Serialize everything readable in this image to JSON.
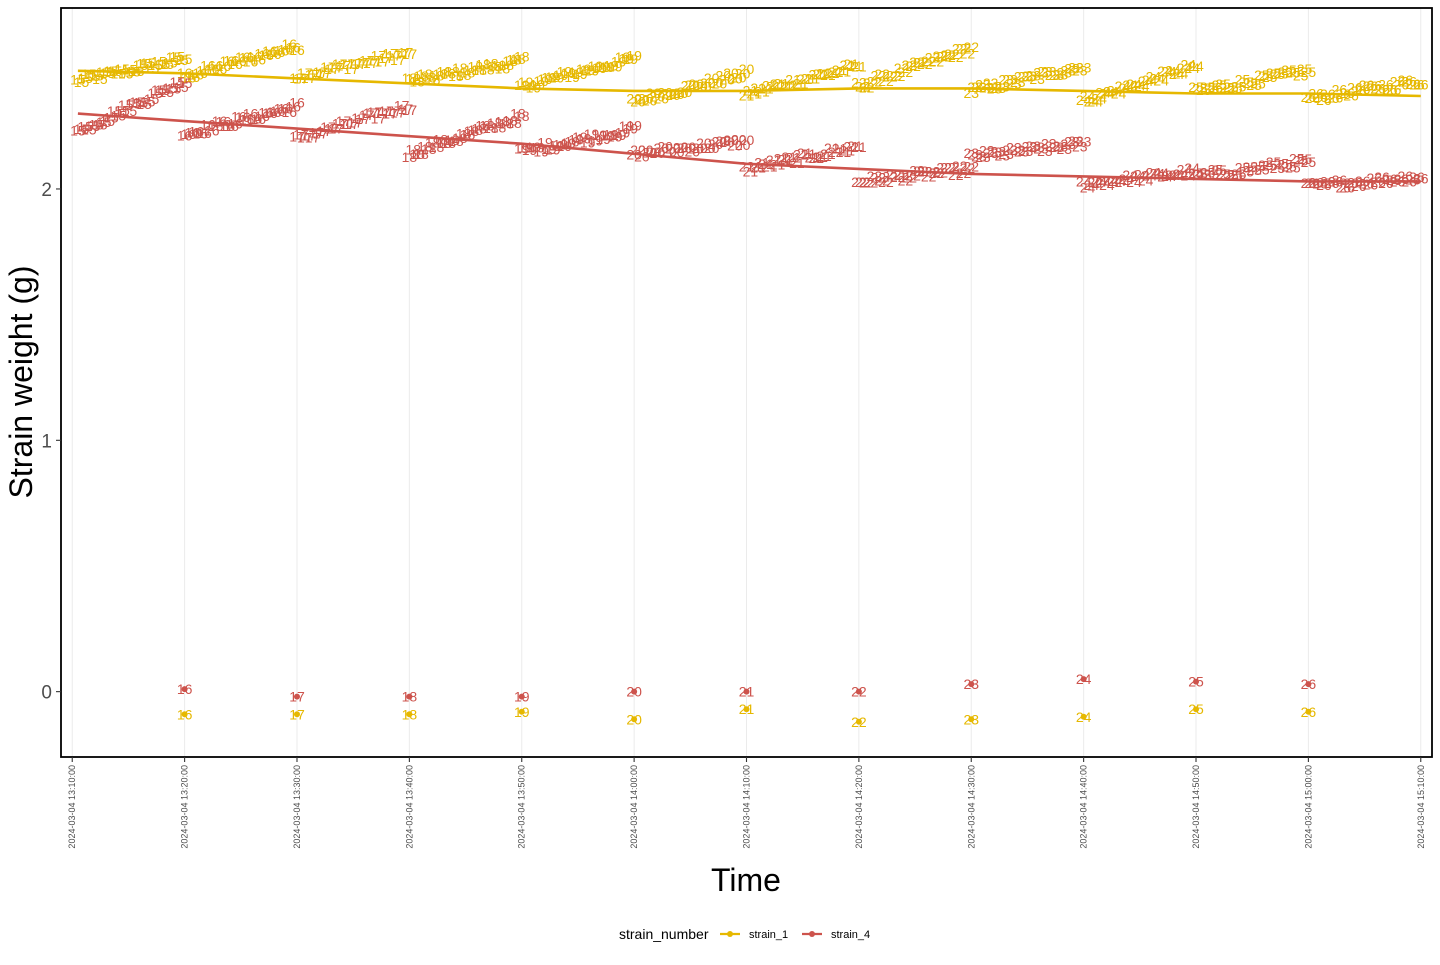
{
  "chart_data": {
    "type": "line",
    "xlabel": "Time",
    "ylabel": "Strain weight (g)",
    "ylim": [
      -0.26,
      2.72
    ],
    "yticks": [
      0,
      1,
      2
    ],
    "xlim": [
      "2024-03-04 13:09:00",
      "2024-03-04 15:11:00"
    ],
    "xticks": [
      "2024-03-04 13:10:00",
      "2024-03-04 13:20:00",
      "2024-03-04 13:30:00",
      "2024-03-04 13:40:00",
      "2024-03-04 13:50:00",
      "2024-03-04 14:00:00",
      "2024-03-04 14:10:00",
      "2024-03-04 14:20:00",
      "2024-03-04 14:30:00",
      "2024-03-04 14:40:00",
      "2024-03-04 14:50:00",
      "2024-03-04 15:00:00",
      "2024-03-04 15:10:00"
    ],
    "grid": "vertical",
    "legend": {
      "position": "bottom",
      "title": "strain_number"
    },
    "series": [
      {
        "name": "strain_1",
        "color": "#E6B800",
        "trend": [
          [
            "2024-03-04 13:10:30",
            2.47
          ],
          [
            "2024-03-04 13:20:00",
            2.46
          ],
          [
            "2024-03-04 13:30:00",
            2.44
          ],
          [
            "2024-03-04 13:40:00",
            2.42
          ],
          [
            "2024-03-04 13:50:00",
            2.4
          ],
          [
            "2024-03-04 14:00:00",
            2.39
          ],
          [
            "2024-03-04 14:10:00",
            2.39
          ],
          [
            "2024-03-04 14:20:00",
            2.4
          ],
          [
            "2024-03-04 14:30:00",
            2.4
          ],
          [
            "2024-03-04 14:40:00",
            2.39
          ],
          [
            "2024-03-04 14:50:00",
            2.38
          ],
          [
            "2024-03-04 15:00:00",
            2.38
          ],
          [
            "2024-03-04 15:10:00",
            2.37
          ]
        ],
        "clusters": [
          {
            "label": "15",
            "start": "2024-03-04 13:10:30",
            "end": "2024-03-04 13:20:00",
            "from": 2.43,
            "to": 2.52
          },
          {
            "label": "16",
            "start": "2024-03-04 13:20:00",
            "end": "2024-03-04 13:30:00",
            "from": 2.45,
            "to": 2.57
          },
          {
            "label": "17",
            "start": "2024-03-04 13:30:00",
            "end": "2024-03-04 13:40:00",
            "from": 2.45,
            "to": 2.54
          },
          {
            "label": "18",
            "start": "2024-03-04 13:40:00",
            "end": "2024-03-04 13:50:00",
            "from": 2.43,
            "to": 2.51
          },
          {
            "label": "19",
            "start": "2024-03-04 13:50:00",
            "end": "2024-03-04 14:00:00",
            "from": 2.41,
            "to": 2.52
          },
          {
            "label": "20",
            "start": "2024-03-04 14:00:00",
            "end": "2024-03-04 14:10:00",
            "from": 2.35,
            "to": 2.46
          },
          {
            "label": "21",
            "start": "2024-03-04 14:10:00",
            "end": "2024-03-04 14:20:00",
            "from": 2.38,
            "to": 2.49
          },
          {
            "label": "22",
            "start": "2024-03-04 14:20:00",
            "end": "2024-03-04 14:30:00",
            "from": 2.41,
            "to": 2.56
          },
          {
            "label": "23",
            "start": "2024-03-04 14:30:00",
            "end": "2024-03-04 14:40:00",
            "from": 2.39,
            "to": 2.49
          },
          {
            "label": "24",
            "start": "2024-03-04 14:40:00",
            "end": "2024-03-04 14:50:00",
            "from": 2.35,
            "to": 2.49
          },
          {
            "label": "25",
            "start": "2024-03-04 14:50:00",
            "end": "2024-03-04 15:00:00",
            "from": 2.39,
            "to": 2.47
          },
          {
            "label": "26",
            "start": "2024-03-04 15:00:00",
            "end": "2024-03-04 15:10:00",
            "from": 2.36,
            "to": 2.43
          }
        ],
        "low_points": [
          {
            "label": "16",
            "x": "2024-03-04 13:20:00",
            "y": -0.09
          },
          {
            "label": "17",
            "x": "2024-03-04 13:30:00",
            "y": -0.09
          },
          {
            "label": "18",
            "x": "2024-03-04 13:40:00",
            "y": -0.09
          },
          {
            "label": "19",
            "x": "2024-03-04 13:50:00",
            "y": -0.08
          },
          {
            "label": "20",
            "x": "2024-03-04 14:00:00",
            "y": -0.11
          },
          {
            "label": "21",
            "x": "2024-03-04 14:10:00",
            "y": -0.07
          },
          {
            "label": "22",
            "x": "2024-03-04 14:20:00",
            "y": -0.12
          },
          {
            "label": "23",
            "x": "2024-03-04 14:30:00",
            "y": -0.11
          },
          {
            "label": "24",
            "x": "2024-03-04 14:40:00",
            "y": -0.1
          },
          {
            "label": "25",
            "x": "2024-03-04 14:50:00",
            "y": -0.07
          },
          {
            "label": "26",
            "x": "2024-03-04 15:00:00",
            "y": -0.08
          }
        ]
      },
      {
        "name": "strain_4",
        "color": "#CD534C",
        "trend": [
          [
            "2024-03-04 13:10:30",
            2.3
          ],
          [
            "2024-03-04 13:20:00",
            2.27
          ],
          [
            "2024-03-04 13:30:00",
            2.24
          ],
          [
            "2024-03-04 13:40:00",
            2.21
          ],
          [
            "2024-03-04 13:50:00",
            2.18
          ],
          [
            "2024-03-04 14:00:00",
            2.14
          ],
          [
            "2024-03-04 14:10:00",
            2.1
          ],
          [
            "2024-03-04 14:20:00",
            2.08
          ],
          [
            "2024-03-04 14:30:00",
            2.06
          ],
          [
            "2024-03-04 14:40:00",
            2.05
          ],
          [
            "2024-03-04 14:50:00",
            2.04
          ],
          [
            "2024-03-04 15:00:00",
            2.03
          ],
          [
            "2024-03-04 15:10:00",
            2.03
          ]
        ],
        "clusters": [
          {
            "label": "15",
            "start": "2024-03-04 13:10:30",
            "end": "2024-03-04 13:20:00",
            "from": 2.23,
            "to": 2.43
          },
          {
            "label": "16",
            "start": "2024-03-04 13:20:00",
            "end": "2024-03-04 13:30:00",
            "from": 2.22,
            "to": 2.33
          },
          {
            "label": "17",
            "start": "2024-03-04 13:30:00",
            "end": "2024-03-04 13:40:00",
            "from": 2.2,
            "to": 2.33
          },
          {
            "label": "18",
            "start": "2024-03-04 13:40:00",
            "end": "2024-03-04 13:50:00",
            "from": 2.14,
            "to": 2.29
          },
          {
            "label": "19",
            "start": "2024-03-04 13:50:00",
            "end": "2024-03-04 14:00:00",
            "from": 2.15,
            "to": 2.24
          },
          {
            "label": "20",
            "start": "2024-03-04 14:00:00",
            "end": "2024-03-04 14:10:00",
            "from": 2.14,
            "to": 2.19
          },
          {
            "label": "21",
            "start": "2024-03-04 14:10:00",
            "end": "2024-03-04 14:20:00",
            "from": 2.08,
            "to": 2.17
          },
          {
            "label": "22",
            "start": "2024-03-04 14:20:00",
            "end": "2024-03-04 14:30:00",
            "from": 2.03,
            "to": 2.08
          },
          {
            "label": "23",
            "start": "2024-03-04 14:30:00",
            "end": "2024-03-04 14:40:00",
            "from": 2.13,
            "to": 2.18
          },
          {
            "label": "24",
            "start": "2024-03-04 14:40:00",
            "end": "2024-03-04 14:50:00",
            "from": 2.02,
            "to": 2.07
          },
          {
            "label": "25",
            "start": "2024-03-04 14:50:00",
            "end": "2024-03-04 15:00:00",
            "from": 2.05,
            "to": 2.11
          },
          {
            "label": "26",
            "start": "2024-03-04 15:00:00",
            "end": "2024-03-04 15:10:00",
            "from": 2.01,
            "to": 2.05
          }
        ],
        "low_points": [
          {
            "label": "16",
            "x": "2024-03-04 13:20:00",
            "y": 0.01
          },
          {
            "label": "17",
            "x": "2024-03-04 13:30:00",
            "y": -0.02
          },
          {
            "label": "18",
            "x": "2024-03-04 13:40:00",
            "y": -0.02
          },
          {
            "label": "19",
            "x": "2024-03-04 13:50:00",
            "y": -0.02
          },
          {
            "label": "20",
            "x": "2024-03-04 14:00:00",
            "y": 0.0
          },
          {
            "label": "21",
            "x": "2024-03-04 14:10:00",
            "y": 0.0
          },
          {
            "label": "22",
            "x": "2024-03-04 14:20:00",
            "y": 0.0
          },
          {
            "label": "23",
            "x": "2024-03-04 14:30:00",
            "y": 0.03
          },
          {
            "label": "24",
            "x": "2024-03-04 14:40:00",
            "y": 0.05
          },
          {
            "label": "25",
            "x": "2024-03-04 14:50:00",
            "y": 0.04
          },
          {
            "label": "26",
            "x": "2024-03-04 15:00:00",
            "y": 0.03
          }
        ]
      }
    ]
  }
}
